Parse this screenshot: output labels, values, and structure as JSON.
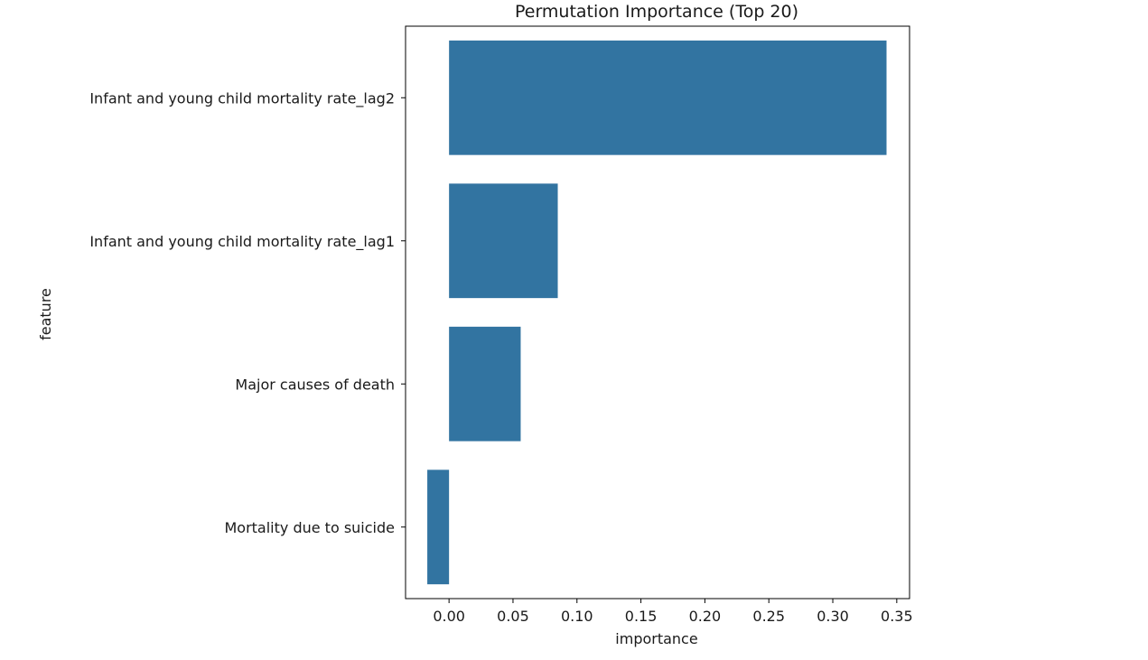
{
  "chart_data": {
    "type": "bar",
    "orientation": "horizontal",
    "title": "Permutation Importance (Top 20)",
    "xlabel": "importance",
    "ylabel": "feature",
    "categories": [
      "Infant and young child mortality rate_lag2",
      "Infant and young child mortality rate_lag1",
      "Major causes of death",
      "Mortality due to suicide"
    ],
    "values": [
      0.342,
      0.085,
      0.056,
      -0.017
    ],
    "xlim": [
      -0.034,
      0.36
    ],
    "xticks": [
      0.0,
      0.05,
      0.1,
      0.15,
      0.2,
      0.25,
      0.3,
      0.35
    ],
    "xtick_labels": [
      "0.00",
      "0.05",
      "0.10",
      "0.15",
      "0.20",
      "0.25",
      "0.30",
      "0.35"
    ],
    "grid": false,
    "bar_color": "#3274a1"
  }
}
